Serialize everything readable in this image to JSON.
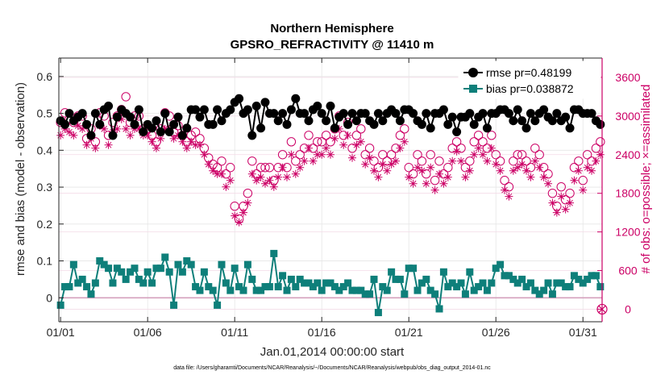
{
  "chart_data": {
    "type": "line",
    "title": "Northern Hemisphere",
    "subtitle": "GPSRO_REFRACTIVITY @ 11410 m",
    "xlabel": "Jan.01,2014 00:00:00 start",
    "ylabel": "rmse and bias (model - observation)",
    "ylabel_right": "# of obs: o=possible; ×=assimilated",
    "footnote": "data file: /Users/gharamti/Documents/NCAR/Reanalysis/~/Documents/NCAR/Reanalysis/webpub/obs_diag_output_2014-01.nc",
    "x_ticks": [
      {
        "day": 0,
        "label": "01/01"
      },
      {
        "day": 5,
        "label": "01/06"
      },
      {
        "day": 10,
        "label": "01/11"
      },
      {
        "day": 15,
        "label": "01/16"
      },
      {
        "day": 20,
        "label": "01/21"
      },
      {
        "day": 25,
        "label": "01/26"
      },
      {
        "day": 30,
        "label": "01/31"
      }
    ],
    "xlim": [
      -0.1,
      31.1
    ],
    "ylim": [
      -0.065,
      0.65
    ],
    "y_ticks": [
      0,
      0.1,
      0.2,
      0.3,
      0.4,
      0.5,
      0.6
    ],
    "y_tick_labels": [
      "0",
      "0.1",
      "0.2",
      "0.3",
      "0.4",
      "0.5",
      "0.6"
    ],
    "ylim_right": [
      -195.0,
      3900.0
    ],
    "y_ticks_right": [
      0,
      600,
      1200,
      1800,
      2400,
      3000,
      3600
    ],
    "y_tick_labels_right": [
      "0",
      "600",
      "1200",
      "1800",
      "2400",
      "3000",
      "3600"
    ],
    "grid": true,
    "legend_position": "top-right",
    "colors": {
      "rmse": "#000000",
      "bias": "#0e7f7a",
      "obs": "#cc0066",
      "zero_line": "#d4a0bc"
    },
    "series": [
      {
        "name": "rmse pr=0.48199",
        "role": "rmse",
        "marker": "circle",
        "x": [
          0.0,
          0.25,
          0.5,
          0.75,
          1.0,
          1.25,
          1.5,
          1.75,
          2.0,
          2.25,
          2.5,
          2.75,
          3.0,
          3.25,
          3.5,
          3.75,
          4.0,
          4.25,
          4.5,
          4.75,
          5.0,
          5.25,
          5.5,
          5.75,
          6.0,
          6.25,
          6.5,
          6.75,
          7.0,
          7.25,
          7.5,
          7.75,
          8.0,
          8.25,
          8.5,
          8.75,
          9.0,
          9.25,
          9.5,
          9.75,
          10.0,
          10.25,
          10.5,
          10.75,
          11.0,
          11.25,
          11.5,
          11.75,
          12.0,
          12.25,
          12.5,
          12.75,
          13.0,
          13.25,
          13.5,
          13.75,
          14.0,
          14.25,
          14.5,
          14.75,
          15.0,
          15.25,
          15.5,
          15.75,
          16.0,
          16.25,
          16.5,
          16.75,
          17.0,
          17.25,
          17.5,
          17.75,
          18.0,
          18.25,
          18.5,
          18.75,
          19.0,
          19.25,
          19.5,
          19.75,
          20.0,
          20.25,
          20.5,
          20.75,
          21.0,
          21.25,
          21.5,
          21.75,
          22.0,
          22.25,
          22.5,
          22.75,
          23.0,
          23.25,
          23.5,
          23.75,
          24.0,
          24.25,
          24.5,
          24.75,
          25.0,
          25.25,
          25.5,
          25.75,
          26.0,
          26.25,
          26.5,
          26.75,
          27.0,
          27.25,
          27.5,
          27.75,
          28.0,
          28.25,
          28.5,
          28.75,
          29.0,
          29.25,
          29.5,
          29.75,
          30.0,
          30.25,
          30.5,
          30.75,
          31.0
        ],
        "values": [
          0.48,
          0.47,
          0.5,
          0.48,
          0.49,
          0.5,
          0.47,
          0.44,
          0.5,
          0.47,
          0.51,
          0.52,
          0.44,
          0.49,
          0.51,
          0.5,
          0.49,
          0.47,
          0.51,
          0.45,
          0.47,
          0.46,
          0.48,
          0.45,
          0.5,
          0.45,
          0.47,
          0.49,
          0.44,
          0.46,
          0.51,
          0.51,
          0.49,
          0.51,
          0.47,
          0.47,
          0.51,
          0.48,
          0.5,
          0.51,
          0.53,
          0.54,
          0.5,
          0.51,
          0.44,
          0.52,
          0.46,
          0.53,
          0.5,
          0.5,
          0.48,
          0.5,
          0.47,
          0.51,
          0.54,
          0.5,
          0.5,
          0.48,
          0.51,
          0.52,
          0.5,
          0.48,
          0.52,
          0.46,
          0.49,
          0.5,
          0.47,
          0.5,
          0.48,
          0.5,
          0.5,
          0.48,
          0.47,
          0.5,
          0.48,
          0.5,
          0.51,
          0.5,
          0.48,
          0.51,
          0.51,
          0.5,
          0.48,
          0.47,
          0.5,
          0.46,
          0.5,
          0.5,
          0.51,
          0.47,
          0.49,
          0.45,
          0.49,
          0.49,
          0.5,
          0.47,
          0.49,
          0.5,
          0.46,
          0.5,
          0.5,
          0.51,
          0.51,
          0.5,
          0.48,
          0.51,
          0.48,
          0.46,
          0.5,
          0.48,
          0.5,
          0.51,
          0.49,
          0.48,
          0.5,
          0.48,
          0.49,
          0.46,
          0.51,
          0.51,
          0.5,
          0.5,
          0.5,
          0.48,
          0.47
        ]
      },
      {
        "name": "bias pr=0.038872",
        "role": "bias",
        "marker": "square",
        "x": [
          0.0,
          0.25,
          0.5,
          0.75,
          1.0,
          1.25,
          1.5,
          1.75,
          2.0,
          2.25,
          2.5,
          2.75,
          3.0,
          3.25,
          3.5,
          3.75,
          4.0,
          4.25,
          4.5,
          4.75,
          5.0,
          5.25,
          5.5,
          5.75,
          6.0,
          6.25,
          6.5,
          6.75,
          7.0,
          7.25,
          7.5,
          7.75,
          8.0,
          8.25,
          8.5,
          8.75,
          9.0,
          9.25,
          9.5,
          9.75,
          10.0,
          10.25,
          10.5,
          10.75,
          11.0,
          11.25,
          11.5,
          11.75,
          12.0,
          12.25,
          12.5,
          12.75,
          13.0,
          13.25,
          13.5,
          13.75,
          14.0,
          14.25,
          14.5,
          14.75,
          15.0,
          15.25,
          15.5,
          15.75,
          16.0,
          16.25,
          16.5,
          16.75,
          17.0,
          17.25,
          17.5,
          17.75,
          18.0,
          18.25,
          18.5,
          18.75,
          19.0,
          19.25,
          19.5,
          19.75,
          20.0,
          20.25,
          20.5,
          20.75,
          21.0,
          21.25,
          21.5,
          21.75,
          22.0,
          22.25,
          22.5,
          22.75,
          23.0,
          23.25,
          23.5,
          23.75,
          24.0,
          24.25,
          24.5,
          24.75,
          25.0,
          25.25,
          25.5,
          25.75,
          26.0,
          26.25,
          26.5,
          26.75,
          27.0,
          27.25,
          27.5,
          27.75,
          28.0,
          28.25,
          28.5,
          28.75,
          29.0,
          29.25,
          29.5,
          29.75,
          30.0,
          30.25,
          30.5,
          30.75,
          31.0
        ],
        "values": [
          -0.02,
          0.03,
          0.03,
          0.09,
          0.04,
          0.05,
          0.03,
          0.01,
          0.04,
          0.1,
          0.09,
          0.08,
          0.04,
          0.08,
          0.07,
          0.05,
          0.07,
          0.08,
          0.05,
          0.04,
          0.07,
          0.04,
          0.08,
          0.08,
          0.11,
          0.07,
          -0.02,
          0.09,
          0.07,
          0.1,
          0.09,
          0.03,
          0.02,
          0.07,
          0.03,
          0.02,
          -0.02,
          0.09,
          0.04,
          0.02,
          0.08,
          0.03,
          0.02,
          0.09,
          0.05,
          0.02,
          0.02,
          0.03,
          0.03,
          0.12,
          0.03,
          0.06,
          0.02,
          0.05,
          0.03,
          0.05,
          0.04,
          0.04,
          0.03,
          0.04,
          0.02,
          0.04,
          0.04,
          0.03,
          0.02,
          0.03,
          0.04,
          0.02,
          0.02,
          0.02,
          0.01,
          0.01,
          0.05,
          -0.04,
          0.03,
          0.02,
          0.07,
          0.05,
          0.05,
          0.01,
          0.08,
          0.08,
          0.02,
          0.04,
          0.05,
          0.02,
          0.01,
          -0.03,
          0.07,
          0.03,
          0.04,
          0.03,
          0.04,
          0.01,
          0.07,
          0.02,
          0.03,
          0.04,
          0.02,
          0.04,
          0.08,
          0.09,
          0.06,
          0.06,
          0.05,
          0.04,
          0.05,
          0.03,
          0.04,
          0.02,
          0.01,
          0.02,
          0.04,
          0.01,
          0.04,
          0.04,
          0.03,
          0.03,
          0.06,
          0.05,
          0.04,
          0.05,
          0.06,
          0.06,
          0.03
        ]
      },
      {
        "name": "possible obs",
        "role": "obs-possible",
        "marker": "open-circle",
        "axis": "right",
        "x": [
          0.0,
          0.25,
          0.5,
          0.75,
          1.0,
          1.25,
          1.5,
          1.75,
          2.0,
          2.25,
          2.5,
          2.75,
          3.0,
          3.25,
          3.5,
          3.75,
          4.0,
          4.25,
          4.5,
          4.75,
          5.0,
          5.25,
          5.5,
          5.75,
          6.0,
          6.25,
          6.5,
          6.75,
          7.0,
          7.25,
          7.5,
          7.75,
          8.0,
          8.25,
          8.5,
          8.75,
          9.0,
          9.25,
          9.5,
          9.75,
          10.0,
          10.25,
          10.5,
          10.75,
          11.0,
          11.25,
          11.5,
          11.75,
          12.0,
          12.25,
          12.5,
          12.75,
          13.0,
          13.25,
          13.5,
          13.75,
          14.0,
          14.25,
          14.5,
          14.75,
          15.0,
          15.25,
          15.5,
          15.75,
          16.0,
          16.25,
          16.5,
          16.75,
          17.0,
          17.25,
          17.5,
          17.75,
          18.0,
          18.25,
          18.5,
          18.75,
          19.0,
          19.25,
          19.5,
          19.75,
          20.0,
          20.25,
          20.5,
          20.75,
          21.0,
          21.25,
          21.5,
          21.75,
          22.0,
          22.25,
          22.5,
          22.75,
          23.0,
          23.25,
          23.5,
          23.75,
          24.0,
          24.25,
          24.5,
          24.75,
          25.0,
          25.25,
          25.5,
          25.75,
          26.0,
          26.25,
          26.5,
          26.75,
          27.0,
          27.25,
          27.5,
          27.75,
          28.0,
          28.25,
          28.5,
          28.75,
          29.0,
          29.25,
          29.5,
          29.75,
          30.0,
          30.25,
          30.5,
          30.75,
          31.0
        ],
        "values": [
          2900,
          3050,
          2950,
          2900,
          3000,
          3000,
          2650,
          2800,
          2600,
          3050,
          3000,
          2700,
          2900,
          3000,
          3100,
          3300,
          2900,
          3000,
          3000,
          2800,
          2800,
          2700,
          2600,
          2800,
          3050,
          3000,
          2750,
          2850,
          2700,
          2600,
          2700,
          2750,
          2650,
          2500,
          2350,
          2250,
          2200,
          2300,
          2100,
          2200,
          1600,
          1400,
          1600,
          1800,
          2300,
          2100,
          2200,
          2200,
          2200,
          2000,
          2200,
          2400,
          2200,
          2600,
          2300,
          2400,
          2500,
          2700,
          2500,
          2600,
          2600,
          2700,
          2600,
          2800,
          3000,
          2700,
          2900,
          2500,
          2700,
          2800,
          2400,
          2500,
          2300,
          2200,
          2400,
          2300,
          2400,
          2500,
          2700,
          2800,
          2200,
          2100,
          2400,
          2300,
          2100,
          2400,
          2000,
          2300,
          2100,
          2200,
          2500,
          2600,
          2500,
          2200,
          2300,
          2600,
          2700,
          2600,
          2500,
          2700,
          2400,
          2300,
          2000,
          1900,
          2300,
          2400,
          2400,
          2300,
          2200,
          2500,
          2400,
          2200,
          2100,
          1800,
          1600,
          1900,
          1700,
          1800,
          2200,
          2300,
          2000,
          2400,
          2300,
          2500,
          2600
        ]
      },
      {
        "name": "assimilated obs",
        "role": "obs-assimilated",
        "marker": "star",
        "axis": "right",
        "x": [
          0.0,
          0.25,
          0.5,
          0.75,
          1.0,
          1.25,
          1.5,
          1.75,
          2.0,
          2.25,
          2.5,
          2.75,
          3.0,
          3.25,
          3.5,
          3.75,
          4.0,
          4.25,
          4.5,
          4.75,
          5.0,
          5.25,
          5.5,
          5.75,
          6.0,
          6.25,
          6.5,
          6.75,
          7.0,
          7.25,
          7.5,
          7.75,
          8.0,
          8.25,
          8.5,
          8.75,
          9.0,
          9.25,
          9.5,
          9.75,
          10.0,
          10.25,
          10.5,
          10.75,
          11.0,
          11.25,
          11.5,
          11.75,
          12.0,
          12.25,
          12.5,
          12.75,
          13.0,
          13.25,
          13.5,
          13.75,
          14.0,
          14.25,
          14.5,
          14.75,
          15.0,
          15.25,
          15.5,
          15.75,
          16.0,
          16.25,
          16.5,
          16.75,
          17.0,
          17.25,
          17.5,
          17.75,
          18.0,
          18.25,
          18.5,
          18.75,
          19.0,
          19.25,
          19.5,
          19.75,
          20.0,
          20.25,
          20.5,
          20.75,
          21.0,
          21.25,
          21.5,
          21.75,
          22.0,
          22.25,
          22.5,
          22.75,
          23.0,
          23.25,
          23.5,
          23.75,
          24.0,
          24.25,
          24.5,
          24.75,
          25.0,
          25.25,
          25.5,
          25.75,
          26.0,
          26.25,
          26.5,
          26.75,
          27.0,
          27.25,
          27.5,
          27.75,
          28.0,
          28.25,
          28.5,
          28.75,
          29.0,
          29.25,
          29.5,
          29.75,
          30.0,
          30.25,
          30.5,
          30.75,
          31.0
        ],
        "values": [
          2700,
          2800,
          2750,
          2700,
          2850,
          2800,
          2550,
          2650,
          2500,
          2850,
          2800,
          2550,
          2750,
          2800,
          2950,
          2800,
          2700,
          2800,
          2800,
          2700,
          2700,
          2600,
          2500,
          2650,
          2800,
          2800,
          2650,
          2700,
          2600,
          2500,
          2600,
          2550,
          2550,
          2400,
          2250,
          2150,
          2100,
          2100,
          1900,
          2000,
          1450,
          1350,
          1500,
          1650,
          2100,
          2000,
          2050,
          1950,
          2000,
          1900,
          2050,
          2200,
          2050,
          2400,
          2100,
          2200,
          2300,
          2500,
          2300,
          2400,
          2400,
          2500,
          2400,
          2650,
          2800,
          2550,
          2700,
          2350,
          2550,
          2600,
          2250,
          2350,
          2150,
          2050,
          2250,
          2150,
          2250,
          2300,
          2500,
          2600,
          2050,
          1950,
          2200,
          2150,
          1950,
          2200,
          1850,
          2100,
          1950,
          2050,
          2300,
          2450,
          2300,
          2050,
          2150,
          2400,
          2500,
          2400,
          2300,
          2500,
          2250,
          2150,
          1850,
          1750,
          2150,
          2200,
          2250,
          2150,
          2050,
          2300,
          2200,
          2050,
          1950,
          1650,
          1500,
          1750,
          1550,
          1650,
          2000,
          2150,
          1850,
          2200,
          2150,
          2300,
          2400
        ]
      }
    ]
  }
}
